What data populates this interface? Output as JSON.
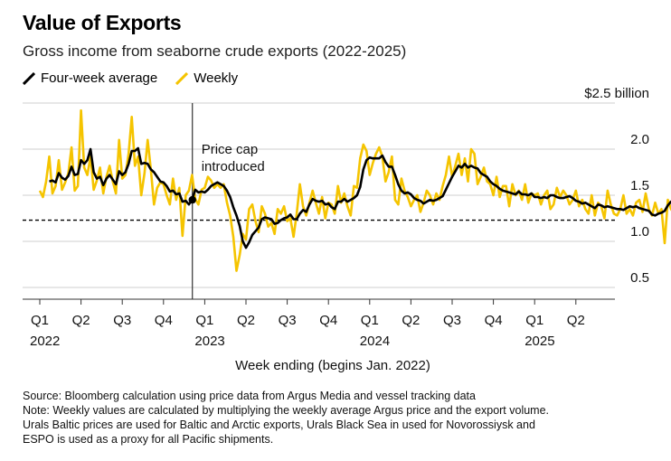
{
  "title": "Value of Exports",
  "subtitle": "Gross income from seaborne crude exports (2022-2025)",
  "legend": {
    "avg": "Four-week average",
    "weekly": "Weekly"
  },
  "colors": {
    "weekly": "#f5c400",
    "avg": "#000000",
    "grid": "#cfcfcf",
    "vline": "#333333"
  },
  "annotation": {
    "line1": "Price cap",
    "line2": "introduced"
  },
  "xlabel": "Week ending (begins Jan. 2022)",
  "notes": {
    "source": "Source: Bloomberg calculation using price data from Argus Media and vessel tracking data",
    "note1": "Note: Weekly values are calculated by multiplying the weekly average Argus price and the export volume.",
    "note2": "Urals Baltic prices are used for Baltic and Arctic exports, Urals Black Sea in used for Novorossiysk and",
    "note3": "ESPO is used as a proxy for all Pacific shipments."
  },
  "chart_data": {
    "type": "line",
    "title": "Value of Exports",
    "subtitle": "Gross income from seaborne crude exports (2022-2025)",
    "xlabel": "Week ending (begins Jan. 2022)",
    "ylabel": "",
    "ylim": [
      0.3,
      2.5
    ],
    "y_ticks": [
      {
        "value": 2.5,
        "label": "$2.5 billion"
      },
      {
        "value": 2.0,
        "label": "2.0"
      },
      {
        "value": 1.5,
        "label": "1.5"
      },
      {
        "value": 1.0,
        "label": "1.0"
      },
      {
        "value": 0.5,
        "label": "0.5"
      }
    ],
    "x_ticks": [
      {
        "q": 0,
        "label": "Q1",
        "year": "2022"
      },
      {
        "q": 1,
        "label": "Q2",
        "year": ""
      },
      {
        "q": 2,
        "label": "Q3",
        "year": ""
      },
      {
        "q": 3,
        "label": "Q4",
        "year": ""
      },
      {
        "q": 4,
        "label": "Q1",
        "year": "2023"
      },
      {
        "q": 5,
        "label": "Q2",
        "year": ""
      },
      {
        "q": 6,
        "label": "Q3",
        "year": ""
      },
      {
        "q": 7,
        "label": "Q4",
        "year": ""
      },
      {
        "q": 8,
        "label": "Q1",
        "year": "2024"
      },
      {
        "q": 9,
        "label": "Q2",
        "year": ""
      },
      {
        "q": 10,
        "label": "Q3",
        "year": ""
      },
      {
        "q": 11,
        "label": "Q4",
        "year": ""
      },
      {
        "q": 12,
        "label": "Q1",
        "year": "2025"
      },
      {
        "q": 13,
        "label": "Q2",
        "year": ""
      }
    ],
    "reference_line": 1.23,
    "event": {
      "quarter_position": 3.7,
      "label": "Price cap introduced"
    },
    "grid": true,
    "legend_position": "top-left",
    "series": [
      {
        "name": "Weekly",
        "values": [
          1.55,
          1.48,
          1.65,
          1.92,
          1.52,
          1.6,
          1.88,
          1.56,
          1.64,
          1.74,
          2.02,
          1.55,
          1.6,
          2.42,
          1.8,
          1.72,
          1.92,
          1.56,
          1.66,
          1.8,
          1.52,
          1.7,
          1.82,
          1.65,
          1.52,
          2.1,
          1.68,
          1.72,
          1.95,
          2.35,
          1.82,
          1.92,
          1.5,
          1.74,
          2.1,
          1.78,
          1.4,
          1.58,
          1.64,
          1.62,
          1.5,
          1.4,
          1.68,
          1.45,
          1.58,
          1.06,
          1.5,
          1.55,
          1.72,
          1.46,
          1.4,
          1.56,
          1.58,
          1.7,
          1.66,
          1.58,
          1.62,
          1.58,
          1.62,
          1.42,
          1.28,
          1.05,
          0.68,
          0.85,
          1.08,
          1.02,
          1.35,
          1.4,
          1.22,
          1.1,
          1.38,
          1.3,
          1.16,
          1.2,
          1.08,
          1.35,
          1.3,
          1.38,
          1.22,
          1.25,
          1.05,
          1.3,
          1.62,
          1.38,
          1.28,
          1.42,
          1.55,
          1.42,
          1.3,
          1.48,
          1.25,
          1.42,
          1.4,
          1.3,
          1.6,
          1.42,
          1.52,
          1.38,
          1.28,
          1.6,
          1.58,
          1.9,
          2.05,
          1.98,
          1.72,
          1.85,
          1.95,
          2.02,
          1.92,
          1.65,
          1.75,
          1.92,
          1.45,
          1.4,
          1.68,
          1.55,
          1.48,
          1.38,
          1.45,
          1.5,
          1.32,
          1.42,
          1.55,
          1.5,
          1.4,
          1.52,
          1.45,
          1.6,
          1.72,
          1.92,
          1.7,
          1.82,
          1.95,
          1.72,
          1.9,
          1.65,
          2.0,
          1.95,
          1.62,
          1.7,
          1.8,
          1.65,
          1.62,
          1.5,
          1.7,
          1.48,
          1.6,
          1.6,
          1.38,
          1.62,
          1.5,
          1.55,
          1.45,
          1.62,
          1.42,
          1.52,
          1.5,
          1.52,
          1.4,
          1.5,
          1.55,
          1.35,
          1.4,
          1.58,
          1.48,
          1.55,
          1.5,
          1.4,
          1.45,
          1.55,
          1.38,
          1.45,
          1.35,
          1.3,
          1.5,
          1.28,
          1.42,
          1.38,
          1.25,
          1.55,
          1.4,
          1.3,
          1.28,
          1.35,
          1.5,
          1.3,
          1.35,
          1.28,
          1.42,
          1.45,
          1.32,
          1.52,
          1.35,
          1.28,
          1.42,
          1.3,
          1.35,
          0.98,
          1.45,
          1.35,
          1.3,
          1.4,
          1.58,
          1.42,
          1.32,
          1.5,
          1.4,
          1.28,
          1.35,
          1.25,
          1.32,
          1.2,
          1.28,
          1.22,
          1.25,
          1.18,
          1.22,
          1.25,
          1.2,
          1.22
        ]
      },
      {
        "name": "Four-week average",
        "values": [
          null,
          null,
          null,
          1.65,
          1.66,
          1.64,
          1.74,
          1.69,
          1.67,
          1.71,
          1.81,
          1.72,
          1.73,
          1.88,
          1.84,
          1.88,
          2.0,
          1.75,
          1.68,
          1.7,
          1.61,
          1.68,
          1.72,
          1.67,
          1.62,
          1.76,
          1.72,
          1.75,
          1.84,
          1.98,
          1.98,
          2.01,
          1.84,
          1.85,
          1.84,
          1.78,
          1.75,
          1.7,
          1.65,
          1.64,
          1.6,
          1.54,
          1.55,
          1.51,
          1.52,
          1.43,
          1.44,
          1.4,
          1.45,
          1.56,
          1.53,
          1.54,
          1.53,
          1.56,
          1.6,
          1.62,
          1.64,
          1.62,
          1.6,
          1.55,
          1.48,
          1.37,
          1.28,
          1.17,
          1.0,
          0.93,
          0.99,
          1.07,
          1.11,
          1.15,
          1.24,
          1.26,
          1.25,
          1.24,
          1.19,
          1.2,
          1.23,
          1.25,
          1.26,
          1.29,
          1.24,
          1.24,
          1.3,
          1.34,
          1.32,
          1.4,
          1.46,
          1.44,
          1.43,
          1.44,
          1.4,
          1.41,
          1.37,
          1.35,
          1.43,
          1.43,
          1.46,
          1.43,
          1.45,
          1.47,
          1.5,
          1.59,
          1.78,
          1.88,
          1.91,
          1.9,
          1.9,
          1.9,
          1.93,
          1.86,
          1.81,
          1.81,
          1.72,
          1.62,
          1.55,
          1.52,
          1.53,
          1.51,
          1.47,
          1.45,
          1.44,
          1.41,
          1.43,
          1.45,
          1.44,
          1.45,
          1.47,
          1.49,
          1.56,
          1.63,
          1.7,
          1.76,
          1.82,
          1.8,
          1.84,
          1.8,
          1.82,
          1.8,
          1.79,
          1.74,
          1.72,
          1.7,
          1.65,
          1.62,
          1.6,
          1.57,
          1.55,
          1.54,
          1.53,
          1.52,
          1.51,
          1.54,
          1.51,
          1.51,
          1.5,
          1.52,
          1.48,
          1.48,
          1.47,
          1.48,
          1.47,
          1.5,
          1.5,
          1.48,
          1.47,
          1.47,
          1.48,
          1.49,
          1.47,
          1.44,
          1.43,
          1.41,
          1.42,
          1.4,
          1.38,
          1.36,
          1.4,
          1.39,
          1.37,
          1.38,
          1.37,
          1.36,
          1.35,
          1.35,
          1.34,
          1.36,
          1.38,
          1.37,
          1.38,
          1.36,
          1.35,
          1.34,
          1.33,
          1.29,
          1.28,
          1.3,
          1.31,
          1.33,
          1.39,
          1.43,
          1.41,
          1.4,
          1.38,
          1.35,
          1.33,
          1.3,
          1.28,
          1.26,
          1.24,
          1.25,
          1.24,
          1.23,
          1.24,
          1.23,
          1.22,
          1.22,
          1.21
        ]
      }
    ]
  }
}
